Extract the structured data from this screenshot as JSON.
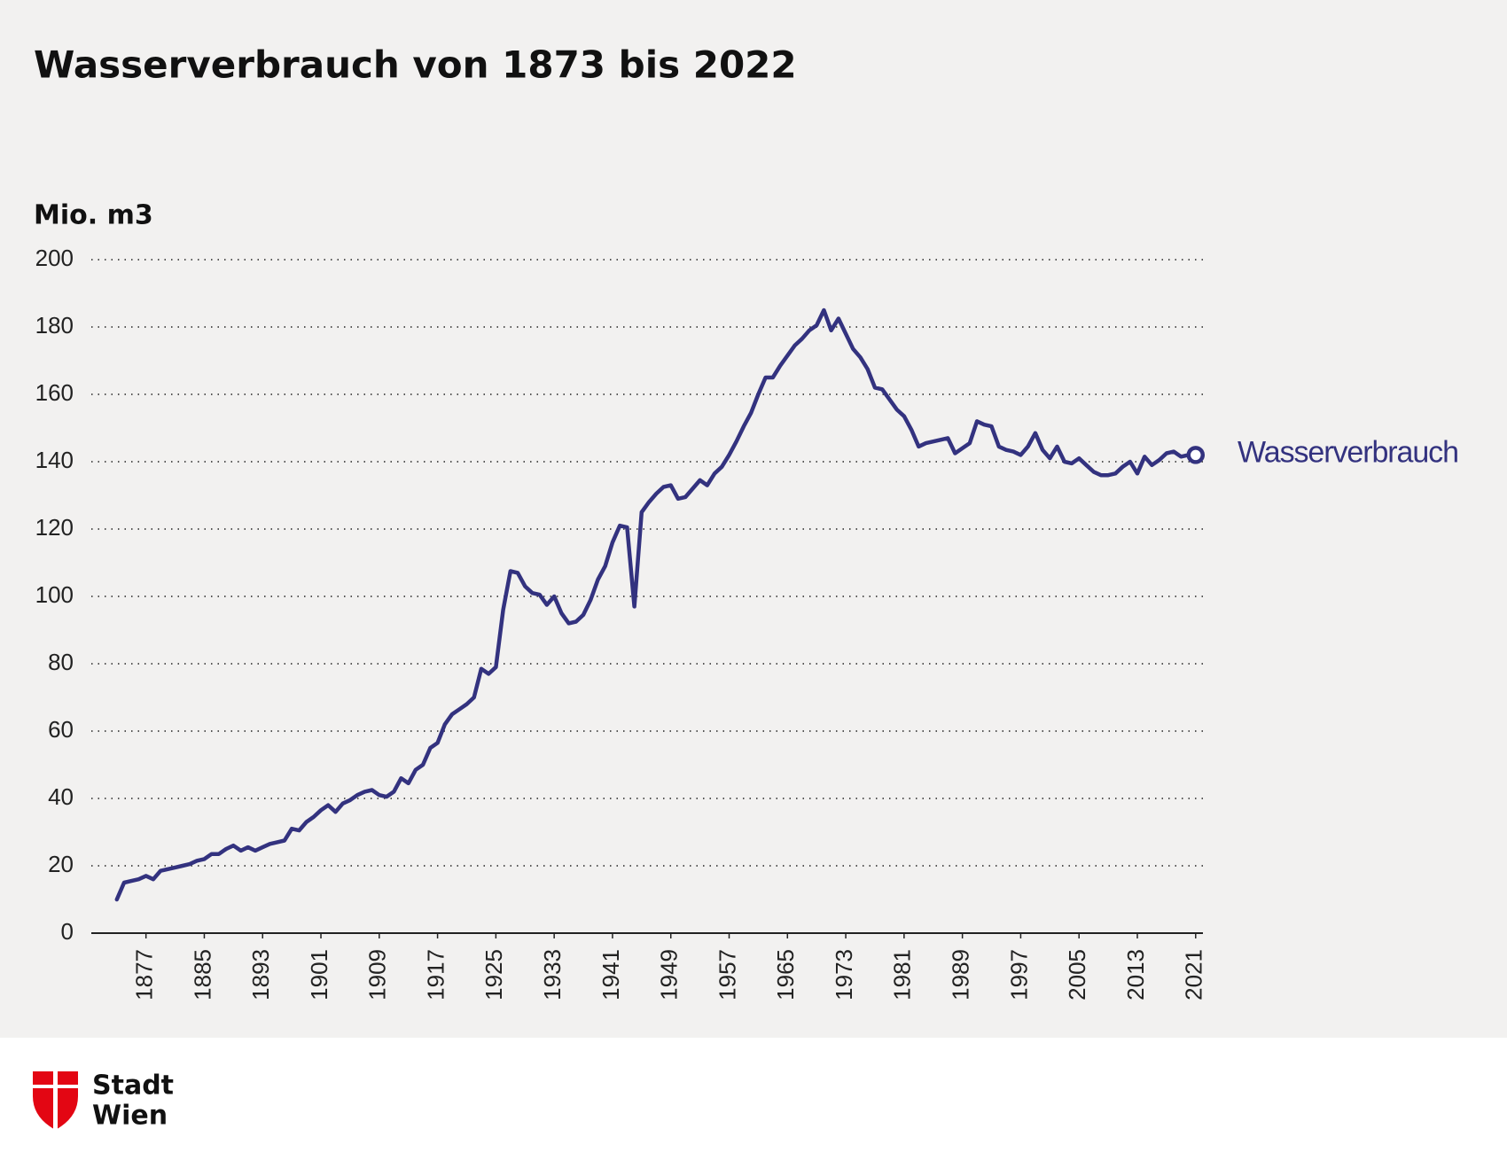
{
  "chart_data": {
    "type": "line",
    "title": "Wasserverbrauch von 1873 bis 2022",
    "y_label": "Mio. m3",
    "x": [
      1873,
      1874,
      1875,
      1876,
      1877,
      1878,
      1879,
      1880,
      1881,
      1882,
      1883,
      1884,
      1885,
      1886,
      1887,
      1888,
      1889,
      1890,
      1891,
      1892,
      1893,
      1894,
      1895,
      1896,
      1897,
      1898,
      1899,
      1900,
      1901,
      1902,
      1903,
      1904,
      1905,
      1906,
      1907,
      1908,
      1909,
      1910,
      1911,
      1912,
      1913,
      1914,
      1915,
      1916,
      1917,
      1918,
      1919,
      1920,
      1921,
      1922,
      1923,
      1924,
      1925,
      1926,
      1927,
      1928,
      1929,
      1930,
      1931,
      1932,
      1933,
      1934,
      1935,
      1936,
      1937,
      1938,
      1939,
      1940,
      1941,
      1942,
      1943,
      1944,
      1945,
      1946,
      1947,
      1948,
      1949,
      1950,
      1951,
      1952,
      1953,
      1954,
      1955,
      1956,
      1957,
      1958,
      1959,
      1960,
      1961,
      1962,
      1963,
      1964,
      1965,
      1966,
      1967,
      1968,
      1969,
      1970,
      1971,
      1972,
      1973,
      1974,
      1975,
      1976,
      1977,
      1978,
      1979,
      1980,
      1981,
      1982,
      1983,
      1984,
      1985,
      1986,
      1987,
      1988,
      1989,
      1990,
      1991,
      1992,
      1993,
      1994,
      1995,
      1996,
      1997,
      1998,
      1999,
      2000,
      2001,
      2002,
      2003,
      2004,
      2005,
      2006,
      2007,
      2008,
      2009,
      2010,
      2011,
      2012,
      2013,
      2014,
      2015,
      2016,
      2017,
      2018,
      2019,
      2020,
      2021
    ],
    "series": [
      {
        "name": "Wasserverbrauch",
        "color": "#33327f",
        "values": [
          10,
          15,
          15.5,
          16,
          17,
          16,
          18.5,
          19,
          19.5,
          20,
          20.5,
          21.5,
          22,
          23.5,
          23.5,
          25,
          26,
          24.5,
          25.5,
          24.5,
          25.5,
          26.5,
          27,
          27.5,
          31,
          30.5,
          33,
          34.5,
          36.5,
          38,
          36,
          38.5,
          39.5,
          41,
          42,
          42.5,
          41,
          40.5,
          42,
          46,
          44.5,
          48.5,
          50,
          55,
          56.5,
          62,
          65,
          66.5,
          68,
          70,
          78.5,
          77,
          79,
          96,
          107.5,
          107,
          103,
          101,
          100.5,
          97.5,
          100,
          95,
          92,
          92.5,
          94.5,
          99,
          105,
          109,
          116,
          121,
          120.5,
          97,
          125,
          128,
          130.5,
          132.5,
          133,
          129,
          129.5,
          132,
          134.5,
          133,
          136.5,
          138.5,
          142,
          146,
          150.5,
          154.5,
          160,
          165,
          165,
          168.5,
          171.5,
          174.5,
          176.5,
          179,
          180.5,
          185,
          179,
          182.5,
          178,
          173.5,
          171,
          167.5,
          162,
          161.5,
          158.5,
          155.5,
          153.5,
          149.5,
          144.5,
          145.5,
          146,
          146.5,
          147,
          142.5,
          144,
          145.5,
          152,
          151,
          150.5,
          144.5,
          143.5,
          143,
          142,
          144.5,
          148.5,
          143.5,
          141,
          144.5,
          140,
          139.5,
          141,
          139,
          137,
          136,
          136,
          136.5,
          138.5,
          140,
          136.5,
          141.5,
          139,
          140.5,
          142.5,
          143,
          141.5,
          142,
          142
        ]
      }
    ],
    "xlim": [
      1869.5,
      2022
    ],
    "xticks": [
      1877,
      1885,
      1893,
      1901,
      1909,
      1917,
      1925,
      1933,
      1941,
      1949,
      1957,
      1965,
      1973,
      1981,
      1989,
      1997,
      2005,
      2013,
      2021
    ],
    "ylim": [
      0,
      200
    ],
    "yticks": [
      0,
      20,
      40,
      60,
      80,
      100,
      120,
      140,
      160,
      180,
      200
    ],
    "grid": true
  },
  "branding": {
    "lines": [
      "Stadt",
      "Wien"
    ]
  }
}
